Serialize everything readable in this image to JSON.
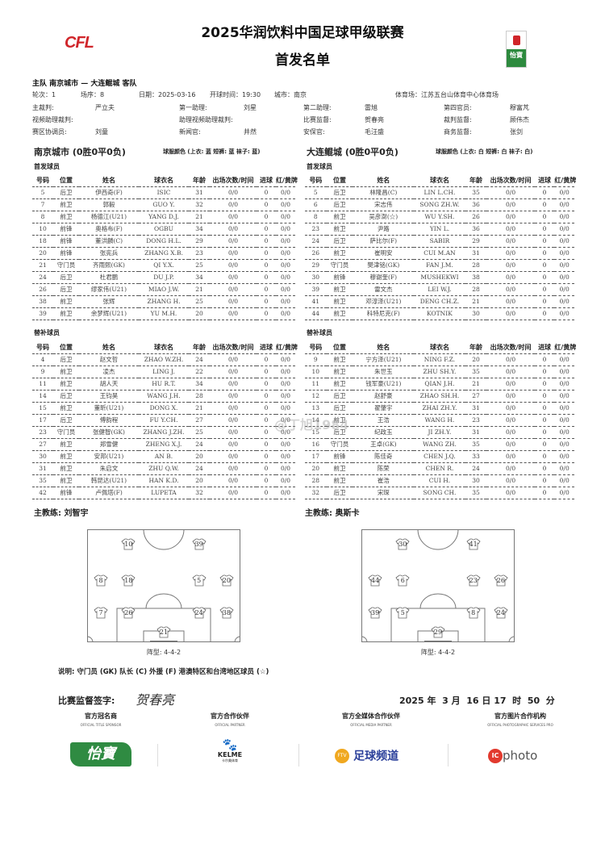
{
  "header": {
    "title": "2025华润饮料中国足球甲级联赛",
    "subtitle": "首发名单",
    "league_logo": "CFL",
    "sponsor_logo": "怡寶"
  },
  "match": {
    "teams_line": "主队 南京城市 — 大连鲲城 客队",
    "row1": [
      "轮次：1",
      "场序：8",
      "日期：2025-03-16",
      "开球时间：19:30",
      "城市：南京",
      "体育场：江苏五台山体育中心体育场"
    ],
    "officials": [
      [
        "主裁判:",
        "严立夫",
        "第一助理:",
        "刘星",
        "第二助理:",
        "雷旭",
        "第四官员:",
        "穆富芃"
      ],
      [
        "视频助理裁判:",
        "",
        "助理视频助理裁判:",
        "",
        "比赛监督:",
        "贺春亮",
        "裁判监督:",
        "顾伟杰"
      ],
      [
        "赛区协调员:",
        "刘童",
        "新闻官:",
        "井然",
        "安保官:",
        "毛汪盛",
        "商务监督:",
        "张剑"
      ]
    ]
  },
  "columns": [
    "号码",
    "位置",
    "姓名",
    "球衣名",
    "年龄",
    "出场次数/时间",
    "进球",
    "红/黄牌"
  ],
  "starters_label": "首发球员",
  "subs_label": "替补球员",
  "home": {
    "title": "南京城市 (0胜0平0负)",
    "kit": "球服颜色 (上衣: 蓝 短裤: 蓝 袜子: 蓝)",
    "starters": [
      [
        "5",
        "后卫",
        "伊西奇(F)",
        "ISIC",
        "31",
        "0/0",
        "0",
        "0/0"
      ],
      [
        "7",
        "前卫",
        "郭毅",
        "GUO Y.",
        "32",
        "0/0",
        "0",
        "0/0"
      ],
      [
        "8",
        "前卫",
        "杨德江(U21)",
        "YANG D.J.",
        "21",
        "0/0",
        "0",
        "0/0"
      ],
      [
        "10",
        "前锋",
        "奥格布(F)",
        "OGBU",
        "34",
        "0/0",
        "0",
        "0/0"
      ],
      [
        "18",
        "前锋",
        "董洪麟(C)",
        "DONG H.L.",
        "29",
        "0/0",
        "0",
        "0/0"
      ],
      [
        "20",
        "前锋",
        "张宪兵",
        "ZHANG X.B.",
        "23",
        "0/0",
        "0",
        "0/0"
      ],
      [
        "21",
        "守门员",
        "齐雨熙(GK)",
        "QI Y.X.",
        "25",
        "0/0",
        "0",
        "0/0"
      ],
      [
        "24",
        "后卫",
        "杜君鹏",
        "DU J.P.",
        "34",
        "0/0",
        "0",
        "0/0"
      ],
      [
        "26",
        "后卫",
        "缪家伟(U21)",
        "MIAO J.W.",
        "21",
        "0/0",
        "0",
        "0/0"
      ],
      [
        "38",
        "前卫",
        "张辉",
        "ZHANG H.",
        "25",
        "0/0",
        "0",
        "0/0"
      ],
      [
        "39",
        "前卫",
        "余梦辉(U21)",
        "YU M.H.",
        "20",
        "0/0",
        "0",
        "0/0"
      ]
    ],
    "subs": [
      [
        "4",
        "后卫",
        "赵文哲",
        "ZHAO W.ZH.",
        "24",
        "0/0",
        "0",
        "0/0"
      ],
      [
        "9",
        "前卫",
        "凌杰",
        "LING J.",
        "22",
        "0/0",
        "0",
        "0/0"
      ],
      [
        "11",
        "前卫",
        "胡人天",
        "HU R.T.",
        "34",
        "0/0",
        "0",
        "0/0"
      ],
      [
        "14",
        "后卫",
        "王钧昊",
        "WANG J.H.",
        "28",
        "0/0",
        "0",
        "0/0"
      ],
      [
        "15",
        "前卫",
        "董昕(U21)",
        "DONG X.",
        "21",
        "0/0",
        "0",
        "0/0"
      ],
      [
        "17",
        "后卫",
        "傅韵程",
        "FU Y.CH.",
        "27",
        "0/0",
        "0",
        "0/0"
      ],
      [
        "23",
        "守门员",
        "张健智(GK)",
        "ZHANG J.ZH.",
        "25",
        "0/0",
        "0",
        "0/0"
      ],
      [
        "27",
        "前卫",
        "郑雪健",
        "ZHENG X.J.",
        "24",
        "0/0",
        "0",
        "0/0"
      ],
      [
        "30",
        "前卫",
        "安邦(U21)",
        "AN B.",
        "20",
        "0/0",
        "0",
        "0/0"
      ],
      [
        "31",
        "前卫",
        "朱启文",
        "ZHU Q.W.",
        "24",
        "0/0",
        "0",
        "0/0"
      ],
      [
        "35",
        "前卫",
        "韩昆达(U21)",
        "HAN K.D.",
        "20",
        "0/0",
        "0",
        "0/0"
      ],
      [
        "42",
        "前锋",
        "卢佩塔(F)",
        "LUPETA",
        "32",
        "0/0",
        "0",
        "0/0"
      ]
    ],
    "coach": "主教练:  刘智宇",
    "formation": "阵型: 4-4-2",
    "lineup": [
      [
        "10",
        "39"
      ],
      [
        "8",
        "18",
        "5",
        "20"
      ],
      [
        "7",
        "26",
        "24",
        "38"
      ],
      [
        "21"
      ]
    ]
  },
  "away": {
    "title": "大连鲲城 (0胜0平0负)",
    "kit": "球服颜色 (上衣: 白 短裤: 白 袜子: 白)",
    "starters": [
      [
        "5",
        "后卫",
        "林隆昌(C)",
        "LIN L.CH.",
        "35",
        "0/0",
        "0",
        "0/0"
      ],
      [
        "6",
        "后卫",
        "宋志伟",
        "SONG ZH.W.",
        "36",
        "0/0",
        "0",
        "0/0"
      ],
      [
        "8",
        "前卫",
        "吴彦澍(☆)",
        "WU Y.SH.",
        "26",
        "0/0",
        "0",
        "0/0"
      ],
      [
        "23",
        "前卫",
        "尹路",
        "YIN L.",
        "36",
        "0/0",
        "0",
        "0/0"
      ],
      [
        "24",
        "后卫",
        "萨比尔(F)",
        "SABIR",
        "29",
        "0/0",
        "0",
        "0/0"
      ],
      [
        "26",
        "前卫",
        "崔明安",
        "CUI M.AN",
        "31",
        "0/0",
        "0",
        "0/0"
      ],
      [
        "29",
        "守门员",
        "樊津铭(GK)",
        "FAN J.M.",
        "28",
        "0/0",
        "0",
        "0/0"
      ],
      [
        "30",
        "前锋",
        "穆谢奎(F)",
        "MUSHEKWI",
        "38",
        "0/0",
        "0",
        "0/0"
      ],
      [
        "39",
        "前卫",
        "雷文杰",
        "LEI W.J.",
        "28",
        "0/0",
        "0",
        "0/0"
      ],
      [
        "41",
        "前卫",
        "邓淳泽(U21)",
        "DENG CH.Z.",
        "21",
        "0/0",
        "0",
        "0/0"
      ],
      [
        "44",
        "前卫",
        "科特尼克(F)",
        "KOTNIK",
        "30",
        "0/0",
        "0",
        "0/0"
      ]
    ],
    "subs": [
      [
        "9",
        "前卫",
        "宁方泽(U21)",
        "NING F.Z.",
        "20",
        "0/0",
        "0",
        "0/0"
      ],
      [
        "10",
        "前卫",
        "朱世玉",
        "ZHU SH.Y.",
        "35",
        "0/0",
        "0",
        "0/0"
      ],
      [
        "11",
        "前卫",
        "钱军豪(U21)",
        "QIAN J.H.",
        "21",
        "0/0",
        "0",
        "0/0"
      ],
      [
        "12",
        "后卫",
        "赵舒豪",
        "ZHAO SH.H.",
        "27",
        "0/0",
        "0",
        "0/0"
      ],
      [
        "13",
        "后卫",
        "翟肇宇",
        "ZHAI ZH.Y.",
        "31",
        "0/0",
        "0",
        "0/0"
      ],
      [
        "14",
        "前卫",
        "王浩",
        "WANG H.",
        "23",
        "0/0",
        "0",
        "0/0"
      ],
      [
        "15",
        "后卫",
        "纪政玉",
        "JI ZH.Y.",
        "31",
        "0/0",
        "0",
        "0/0"
      ],
      [
        "16",
        "守门员",
        "王卓(GK)",
        "WANG ZH.",
        "35",
        "0/0",
        "0",
        "0/0"
      ],
      [
        "17",
        "前锋",
        "陈佳奇",
        "CHEN J.Q.",
        "33",
        "0/0",
        "0",
        "0/0"
      ],
      [
        "20",
        "前卫",
        "陈荣",
        "CHEN R.",
        "24",
        "0/0",
        "0",
        "0/0"
      ],
      [
        "28",
        "前卫",
        "崔浩",
        "CUI H.",
        "30",
        "0/0",
        "0",
        "0/0"
      ],
      [
        "32",
        "后卫",
        "宋琛",
        "SONG CH.",
        "35",
        "0/0",
        "0",
        "0/0"
      ]
    ],
    "coach": "主教练:  奥斯卡",
    "formation": "阵型: 4-4-2",
    "lineup": [
      [
        "30",
        "41"
      ],
      [
        "44",
        "6",
        "23",
        "26"
      ],
      [
        "39",
        "5",
        "8",
        "24"
      ],
      [
        "29"
      ]
    ]
  },
  "note": "说明: 守门员 (GK) 队长 (C) 外援 (F) 港澳特区和台湾地区球员 (☆)",
  "signature": {
    "label": "比赛监督签字:",
    "name": "贺春亮",
    "datetime": "2025 年  3 月  16 日 17  时  50  分"
  },
  "sponsors": [
    {
      "title": "官方冠名商",
      "sub": "OFFICIAL TITLE SPONSOR",
      "logo": "怡寶"
    },
    {
      "title": "官方合作伙伴",
      "sub": "OFFICIAL PARTNER",
      "logo": "KELME",
      "logo_sub": "卡尔美体育"
    },
    {
      "title": "官方全媒体合作伙伴",
      "sub": "OFFICIAL MEDIA PARTNER",
      "logo": "足球频道",
      "logo_badge": "FTV"
    },
    {
      "title": "官方图片合作机构",
      "sub": "OFFICIAL PHOTOGRAPHIC SERVICES PRO",
      "logo": "photo",
      "logo_badge": "IC"
    }
  ],
  "watermark": "@丁旭1984"
}
